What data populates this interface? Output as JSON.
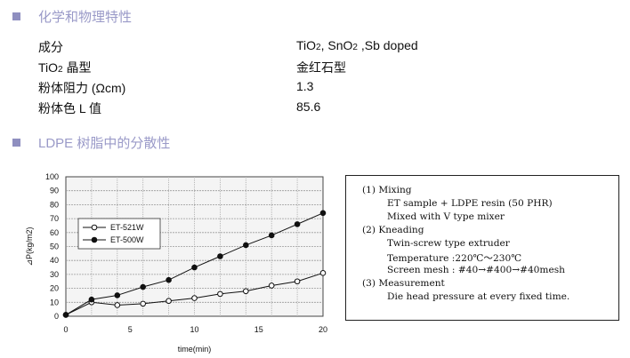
{
  "section1": {
    "title": "化学和物理特性"
  },
  "properties": [
    {
      "key_main": "成分",
      "key_sub": "",
      "key_tail": "",
      "val_html": [
        "TiO",
        "2",
        ", SnO",
        "2",
        " ,Sb doped"
      ]
    },
    {
      "key_main": "TiO",
      "key_sub": "2",
      "key_tail": " 晶型",
      "val_html": [
        "金红石型",
        "",
        "",
        "",
        ""
      ]
    },
    {
      "key_main": "粉体阻力 (Ωcm)",
      "key_sub": "",
      "key_tail": "",
      "val_html": [
        "1.3",
        "",
        "",
        "",
        ""
      ]
    },
    {
      "key_main": "粉体色  L 值",
      "key_sub": "",
      "key_tail": "",
      "val_html": [
        "85.6",
        "",
        "",
        "",
        ""
      ]
    }
  ],
  "section2": {
    "title": "LDPE 树脂中的分散性"
  },
  "chart_data": {
    "type": "line",
    "xlabel": "time(min)",
    "ylabel": "⊿P(kg/m2)",
    "xlim": [
      0,
      20
    ],
    "ylim": [
      0,
      100
    ],
    "xticks": [
      0,
      5,
      10,
      15,
      20
    ],
    "yticks": [
      0,
      10,
      20,
      30,
      40,
      50,
      60,
      70,
      80,
      90,
      100
    ],
    "grid": true,
    "legend_position": "left",
    "x": [
      0,
      2,
      4,
      6,
      8,
      10,
      12,
      14,
      16,
      18,
      20
    ],
    "series": [
      {
        "name": "ET-521W",
        "marker": "open-circle",
        "values": [
          1,
          10,
          8,
          9,
          11,
          13,
          16,
          18,
          22,
          25,
          31
        ]
      },
      {
        "name": "ET-500W",
        "marker": "filled-circle",
        "values": [
          1,
          12,
          15,
          21,
          26,
          35,
          43,
          51,
          58,
          66,
          74
        ]
      }
    ]
  },
  "notes": {
    "lines": [
      "(1)  Mixing",
      "ET sample + LDPE resin (50 PHR)",
      "Mixed with V type mixer",
      "(2)  Kneading",
      "Twin-screw type extruder",
      "Temperature :220℃～230℃",
      "Screen mesh : #40→#400→#40mesh",
      "(3)  Measurement",
      "Die head pressure at every fixed time."
    ]
  }
}
